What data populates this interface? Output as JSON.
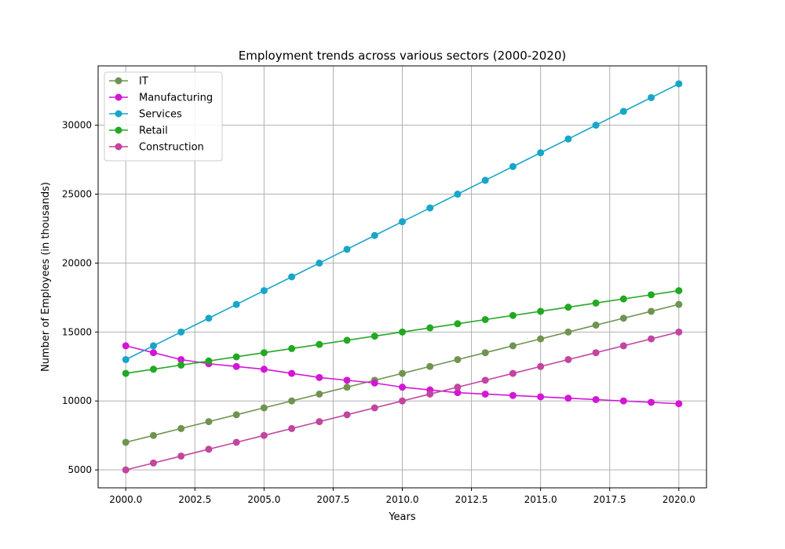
{
  "chart_data": {
    "type": "line",
    "title": "Employment trends across various sectors (2000-2020)",
    "xlabel": "Years",
    "ylabel": "Number of Employees (in thousands)",
    "x": [
      2000,
      2001,
      2002,
      2003,
      2004,
      2005,
      2006,
      2007,
      2008,
      2009,
      2010,
      2011,
      2012,
      2013,
      2014,
      2015,
      2016,
      2017,
      2018,
      2019,
      2020
    ],
    "xlim": [
      1999,
      2021
    ],
    "ylim": [
      3700,
      34300
    ],
    "x_ticks": [
      2000,
      2002.5,
      2005,
      2007.5,
      2010,
      2012.5,
      2015,
      2017.5,
      2020
    ],
    "x_tick_labels": [
      "2000.0",
      "2002.5",
      "2005.0",
      "2007.5",
      "2010.0",
      "2012.5",
      "2015.0",
      "2017.5",
      "2020.0"
    ],
    "y_ticks": [
      5000,
      10000,
      15000,
      20000,
      25000,
      30000
    ],
    "y_tick_labels": [
      "5000",
      "10000",
      "15000",
      "20000",
      "25000",
      "30000"
    ],
    "grid": true,
    "legend_position": "top-left",
    "series": [
      {
        "name": "IT",
        "color": "#6f9451",
        "values": [
          7000,
          7500,
          8000,
          8500,
          9000,
          9500,
          10000,
          10500,
          11000,
          11500,
          12000,
          12500,
          13000,
          13500,
          14000,
          14500,
          15000,
          15500,
          16000,
          16500,
          17000
        ]
      },
      {
        "name": "Manufacturing",
        "color": "#d316d6",
        "values": [
          14000,
          13500,
          13000,
          12700,
          12500,
          12300,
          12000,
          11700,
          11500,
          11300,
          11000,
          10800,
          10600,
          10500,
          10400,
          10300,
          10200,
          10100,
          10000,
          9900,
          9800
        ]
      },
      {
        "name": "Services",
        "color": "#17a6c9",
        "values": [
          13000,
          14000,
          15000,
          16000,
          17000,
          18000,
          19000,
          20000,
          21000,
          22000,
          23000,
          24000,
          25000,
          26000,
          27000,
          28000,
          29000,
          30000,
          31000,
          32000,
          33000
        ]
      },
      {
        "name": "Retail",
        "color": "#23a823",
        "values": [
          12000,
          12300,
          12600,
          12900,
          13200,
          13500,
          13800,
          14100,
          14400,
          14700,
          15000,
          15300,
          15600,
          15900,
          16200,
          16500,
          16800,
          17100,
          17400,
          17700,
          18000
        ]
      },
      {
        "name": "Construction",
        "color": "#c2459f",
        "values": [
          5000,
          5500,
          6000,
          6500,
          7000,
          7500,
          8000,
          8500,
          9000,
          9500,
          10000,
          10500,
          11000,
          11500,
          12000,
          12500,
          13000,
          13500,
          14000,
          14500,
          15000
        ]
      }
    ]
  }
}
